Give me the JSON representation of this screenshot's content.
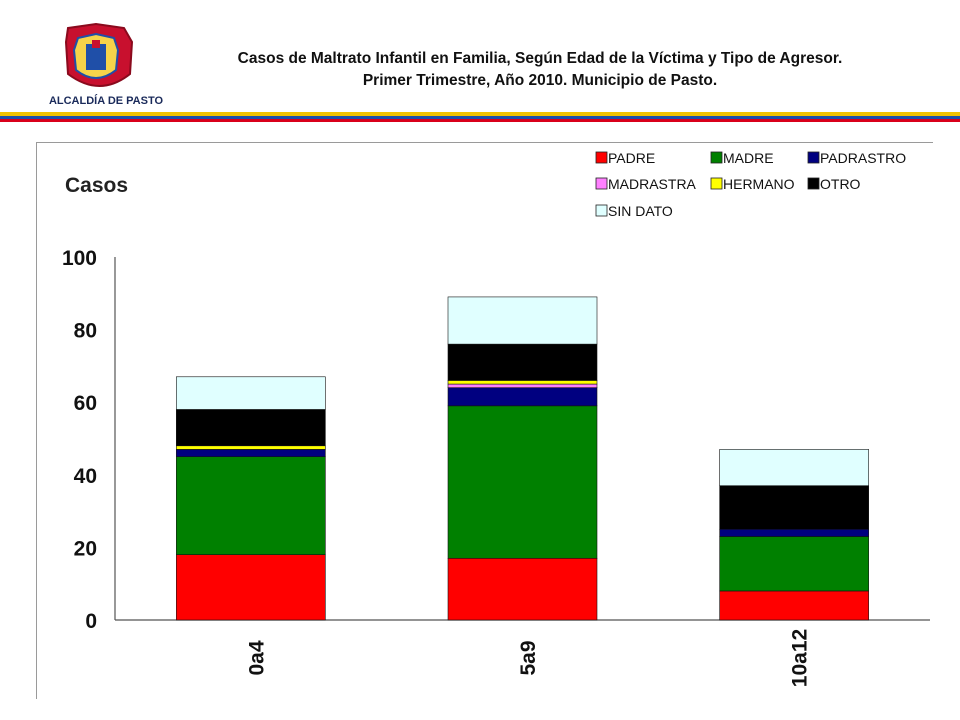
{
  "header": {
    "logo_text": "ALCALDÍA DE PASTO",
    "title_line1": "Casos de Maltrato Infantil en Familia,  Según Edad de la Víctima y Tipo de Agresor.",
    "title_line2": "Primer Trimestre, Año 2010. Municipio de Pasto."
  },
  "colors": {
    "stripe_yellow": "#f2c200",
    "stripe_blue": "#1f4fa8",
    "stripe_red": "#d9001b"
  },
  "chart_data": {
    "type": "bar",
    "stacked": true,
    "ylabel": "Casos",
    "ylim": [
      0,
      100
    ],
    "yticks": [
      0,
      20,
      40,
      60,
      80,
      100
    ],
    "grid": false,
    "legend_position": "top-right",
    "categories": [
      "0a4",
      "5a9",
      "10a12"
    ],
    "series": [
      {
        "name": "PADRE",
        "color": "#ff0000",
        "values": [
          18,
          17,
          8
        ]
      },
      {
        "name": "MADRE",
        "color": "#008000",
        "values": [
          27,
          42,
          15
        ]
      },
      {
        "name": "PADRASTRO",
        "color": "#000080",
        "values": [
          2,
          5,
          2
        ]
      },
      {
        "name": "MADRASTRA",
        "color": "#ff80ff",
        "values": [
          0,
          1,
          0
        ]
      },
      {
        "name": "HERMANO",
        "color": "#ffff00",
        "values": [
          1,
          1,
          0
        ]
      },
      {
        "name": "OTRO",
        "color": "#000000",
        "values": [
          10,
          10,
          12
        ]
      },
      {
        "name": "SIN DATO",
        "color": "#e0ffff",
        "values": [
          9,
          13,
          10
        ]
      }
    ]
  }
}
